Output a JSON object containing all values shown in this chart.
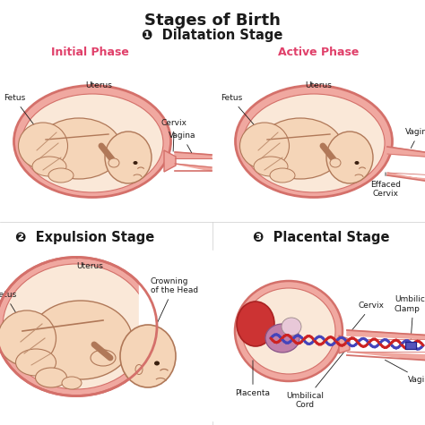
{
  "title": "Stages of Birth",
  "subtitle_1": "❶  Dilatation Stage",
  "subtitle_2": "❷  Expulsion Stage",
  "subtitle_3": "❸  Placental Stage",
  "phase1": "Initial Phase",
  "phase2": "Active Phase",
  "bg_color": "#ffffff",
  "title_fontsize": 13,
  "stage_fontsize": 10.5,
  "phase_fontsize": 9,
  "label_fontsize": 6.5,
  "skin_fill": "#f5d5b8",
  "skin_light": "#fae8d8",
  "uterus_line": "#d4706a",
  "uterus_fill": "#f0a8a0",
  "text_black": "#1a1a1a",
  "text_pink": "#e0406a",
  "cord_blue": "#4444bb",
  "cord_red": "#cc2222",
  "placenta_red": "#cc3333",
  "purple_fill": "#c080aa"
}
